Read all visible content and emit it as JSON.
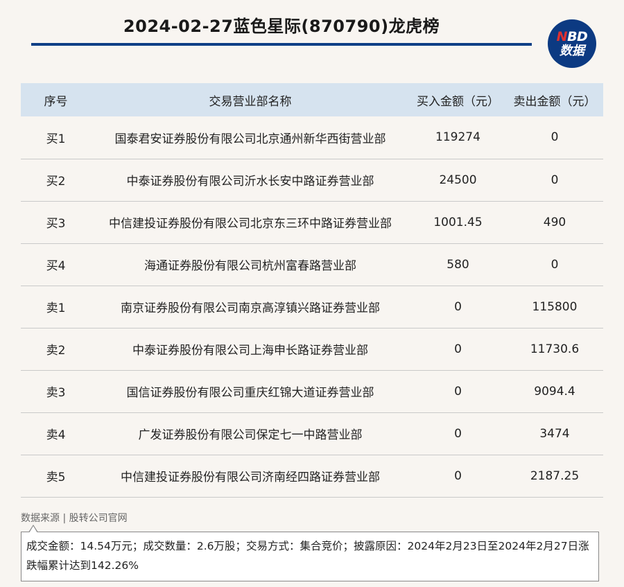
{
  "header": {
    "title": "2024-02-27蓝色星际(870790)龙虎榜",
    "logo_line1_red": "N",
    "logo_line1_rest": "BD",
    "logo_line2": "数据"
  },
  "table": {
    "columns": [
      "序号",
      "交易营业部名称",
      "买入金额（元）",
      "卖出金额（元）"
    ],
    "rows": [
      {
        "seq": "买1",
        "name": "国泰君安证券股份有限公司北京通州新华西街营业部",
        "buy": "119274",
        "sell": "0"
      },
      {
        "seq": "买2",
        "name": "中泰证券股份有限公司沂水长安中路证券营业部",
        "buy": "24500",
        "sell": "0"
      },
      {
        "seq": "买3",
        "name": "中信建投证券股份有限公司北京东三环中路证券营业部",
        "buy": "1001.45",
        "sell": "490"
      },
      {
        "seq": "买4",
        "name": "海通证券股份有限公司杭州富春路营业部",
        "buy": "580",
        "sell": "0"
      },
      {
        "seq": "卖1",
        "name": "南京证券股份有限公司南京高淳镇兴路证券营业部",
        "buy": "0",
        "sell": "115800"
      },
      {
        "seq": "卖2",
        "name": "中泰证券股份有限公司上海申长路证券营业部",
        "buy": "0",
        "sell": "11730.6"
      },
      {
        "seq": "卖3",
        "name": "国信证券股份有限公司重庆红锦大道证券营业部",
        "buy": "0",
        "sell": "9094.4"
      },
      {
        "seq": "卖4",
        "name": "广发证券股份有限公司保定七一中路营业部",
        "buy": "0",
        "sell": "3474"
      },
      {
        "seq": "卖5",
        "name": "中信建投证券股份有限公司济南经四路证券营业部",
        "buy": "0",
        "sell": "2187.25"
      }
    ]
  },
  "footer": {
    "source": "数据来源 | 股转公司官网",
    "note": "成交金额：14.54万元；成交数量：2.6万股；交易方式：集合竞价；披露原因：2024年2月23日至2024年2月27日涨跌幅累计达到142.26%"
  },
  "colors": {
    "accent": "#0f3f86",
    "header_bg": "#d6e3ef",
    "page_bg": "#f8f5f1"
  }
}
